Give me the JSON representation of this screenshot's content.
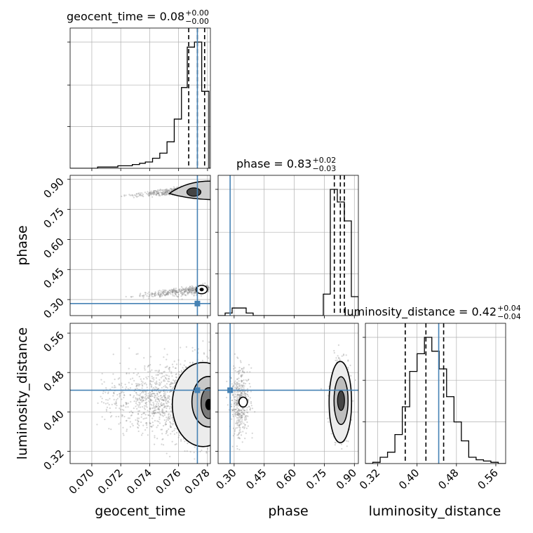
{
  "chart_data": {
    "type": "corner",
    "parameters": [
      {
        "key": "geocent_time",
        "label": "geocent_time",
        "range": [
          0.0685,
          0.0782
        ],
        "ticks": [
          "0.070",
          "0.072",
          "0.074",
          "0.076",
          "0.078"
        ],
        "tick_values": [
          0.07,
          0.072,
          0.074,
          0.076,
          0.078
        ],
        "truth": 0.0773,
        "median": 0.0773,
        "quantiles": [
          0.0767,
          0.0778
        ],
        "title": {
          "prefix": "geocent_time = 0.08",
          "plus": "+0.00",
          "minus": "−0.00"
        },
        "hist_edges": [
          0.0685,
          0.0704,
          0.0713,
          0.0718,
          0.0723,
          0.0728,
          0.0733,
          0.0737,
          0.0742,
          0.0747,
          0.0752,
          0.0757,
          0.0762,
          0.0766,
          0.0771,
          0.0776,
          0.0781,
          0.0782
        ],
        "hist_counts": [
          0.0,
          0.01,
          0.01,
          0.02,
          0.02,
          0.03,
          0.04,
          0.05,
          0.08,
          0.12,
          0.21,
          0.39,
          0.64,
          0.96,
          1.0,
          0.61,
          0.0
        ]
      },
      {
        "key": "phase",
        "label": "phase",
        "range": [
          0.22,
          0.92
        ],
        "ticks": [
          "0.30",
          "0.45",
          "0.60",
          "0.75",
          "0.90"
        ],
        "tick_values": [
          0.3,
          0.45,
          0.6,
          0.75,
          0.9
        ],
        "truth": 0.28,
        "median": 0.83,
        "quantiles": [
          0.8,
          0.85
        ],
        "title": {
          "prefix": "phase = 0.83",
          "plus": "+0.02",
          "minus": "−0.03"
        },
        "hist_edges": [
          0.22,
          0.255,
          0.29,
          0.325,
          0.36,
          0.395,
          0.43,
          0.745,
          0.78,
          0.815,
          0.85,
          0.885,
          0.92
        ],
        "hist_counts": [
          0.0,
          0.02,
          0.06,
          0.06,
          0.02,
          0.0,
          0.0,
          0.17,
          1.0,
          0.9,
          0.75,
          0.15
        ]
      },
      {
        "key": "luminosity_distance",
        "label": "luminosity_distance",
        "range": [
          0.295,
          0.58
        ],
        "ticks": [
          "0.32",
          "0.40",
          "0.48",
          "0.56"
        ],
        "tick_values": [
          0.32,
          0.4,
          0.48,
          0.56
        ],
        "truth": 0.444,
        "median": 0.418,
        "quantiles": [
          0.376,
          0.454
        ],
        "title": {
          "prefix": "luminosity_distance = 0.42",
          "plus": "+0.04",
          "minus": "−0.04"
        },
        "hist_edges": [
          0.295,
          0.31,
          0.325,
          0.34,
          0.355,
          0.37,
          0.385,
          0.4,
          0.415,
          0.43,
          0.445,
          0.46,
          0.475,
          0.49,
          0.505,
          0.52,
          0.535,
          0.55,
          0.565,
          0.58
        ],
        "hist_counts": [
          0.0,
          0.01,
          0.05,
          0.09,
          0.23,
          0.45,
          0.73,
          0.87,
          1.0,
          0.89,
          0.75,
          0.53,
          0.33,
          0.18,
          0.05,
          0.03,
          0.02,
          0.01,
          0.0
        ]
      }
    ],
    "grid": true,
    "colors": {
      "truth": "#4682b4",
      "line": "#000000",
      "scatter": "#888888"
    }
  }
}
